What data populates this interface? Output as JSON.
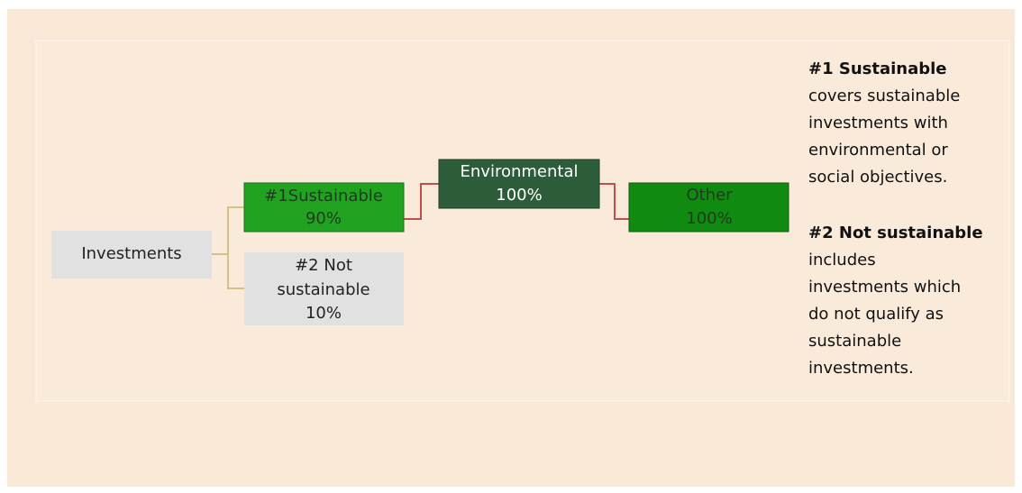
{
  "nodes": [
    {
      "lines": [
        "Investments"
      ]
    },
    {
      "lines": [
        "#1Sustainable",
        "90%"
      ]
    },
    {
      "lines": [
        "#2 Not",
        "sustainable",
        "10%"
      ]
    },
    {
      "lines": [
        "Environmental",
        "100%"
      ]
    },
    {
      "lines": [
        "Other",
        "100%"
      ]
    }
  ],
  "legend": [
    {
      "title": "#1 Sustainable",
      "lines": [
        "covers sustainable",
        "investments with",
        "environmental or",
        "social objectives."
      ]
    },
    {
      "title": "#2 Not sustainable",
      "lines": [
        "includes",
        "investments which",
        "do not qualify as",
        "sustainable",
        "investments."
      ]
    }
  ]
}
